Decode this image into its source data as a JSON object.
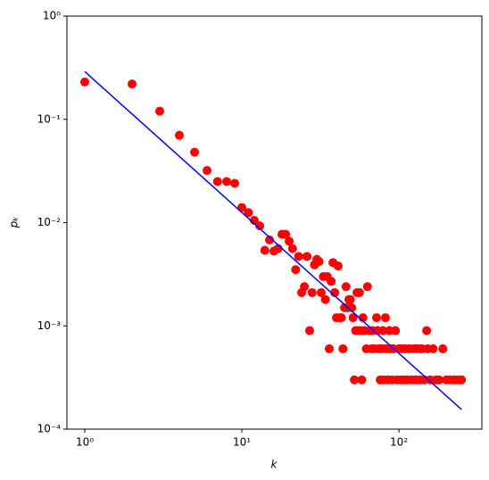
{
  "chart_data": {
    "type": "scatter",
    "xlabel": "k",
    "ylabel": "pₖ",
    "xscale": "log",
    "yscale": "log",
    "xlim": [
      0.77,
      337
    ],
    "ylim": [
      0.0001,
      1
    ],
    "xticks": [
      {
        "value": 1,
        "label": "10⁰"
      },
      {
        "value": 10,
        "label": "10¹"
      },
      {
        "value": 100,
        "label": "10²"
      }
    ],
    "yticks": [
      {
        "value": 0.0001,
        "label": "10⁻⁴"
      },
      {
        "value": 0.001,
        "label": "10⁻³"
      },
      {
        "value": 0.01,
        "label": "10⁻²"
      },
      {
        "value": 0.1,
        "label": "10⁻¹"
      },
      {
        "value": 1,
        "label": "10⁰"
      }
    ],
    "series": [
      {
        "type": "scatter",
        "color": "#ff0000",
        "x": [
          1,
          2,
          3,
          4,
          5,
          6,
          7,
          8,
          9,
          10,
          11,
          12,
          13,
          14,
          15,
          16,
          17,
          18,
          19,
          20,
          21,
          22,
          23,
          24,
          25,
          26,
          27,
          28,
          29,
          30,
          31,
          32,
          33,
          34,
          35,
          36,
          37,
          38,
          39,
          40,
          41,
          42,
          43,
          44,
          45,
          46,
          47,
          48,
          49,
          50,
          51,
          52,
          53,
          54,
          55,
          56,
          57,
          58,
          59,
          60,
          62,
          63,
          65,
          67,
          68,
          70,
          72,
          73,
          75,
          76,
          78,
          79,
          80,
          82,
          83,
          85,
          87,
          88,
          90,
          92,
          95,
          97,
          100,
          103,
          105,
          108,
          110,
          113,
          117,
          120,
          125,
          128,
          132,
          136,
          140,
          145,
          150,
          152,
          158,
          165,
          172,
          180,
          190,
          200,
          212,
          225,
          238,
          250
        ],
        "values": [
          0.23,
          0.22,
          0.12,
          0.07,
          0.048,
          0.032,
          0.025,
          0.025,
          0.024,
          0.014,
          0.0125,
          0.0105,
          0.0093,
          0.0054,
          0.0068,
          0.0053,
          0.0056,
          0.0077,
          0.0077,
          0.0066,
          0.0056,
          0.0035,
          0.0047,
          0.0021,
          0.0024,
          0.0047,
          0.0009,
          0.0021,
          0.0039,
          0.0044,
          0.0042,
          0.0021,
          0.003,
          0.0018,
          0.003,
          0.0006,
          0.0027,
          0.0041,
          0.0021,
          0.0012,
          0.0038,
          0.0012,
          0.0012,
          0.0006,
          0.0015,
          0.0024,
          0.0015,
          0.0018,
          0.0018,
          0.0015,
          0.0012,
          0.0003,
          0.0009,
          0.0021,
          0.0009,
          0.0021,
          0.0009,
          0.0003,
          0.0012,
          0.0009,
          0.0006,
          0.0024,
          0.0009,
          0.0006,
          0.0009,
          0.0006,
          0.0012,
          0.0009,
          0.0006,
          0.0003,
          0.0006,
          0.0009,
          0.0003,
          0.0012,
          0.0006,
          0.0003,
          0.0009,
          0.0006,
          0.0003,
          0.0006,
          0.0009,
          0.0003,
          0.0006,
          0.0003,
          0.0006,
          0.0003,
          0.0006,
          0.0003,
          0.0006,
          0.0003,
          0.0006,
          0.0003,
          0.0006,
          0.0003,
          0.0006,
          0.0003,
          0.0009,
          0.0006,
          0.0003,
          0.0006,
          0.0003,
          0.0003,
          0.0006,
          0.0003,
          0.0003,
          0.0003,
          0.0003,
          0.0003
        ]
      },
      {
        "type": "line",
        "color": "#0000ff",
        "x": [
          1,
          250
        ],
        "values": [
          0.29,
          0.000155
        ]
      }
    ]
  }
}
